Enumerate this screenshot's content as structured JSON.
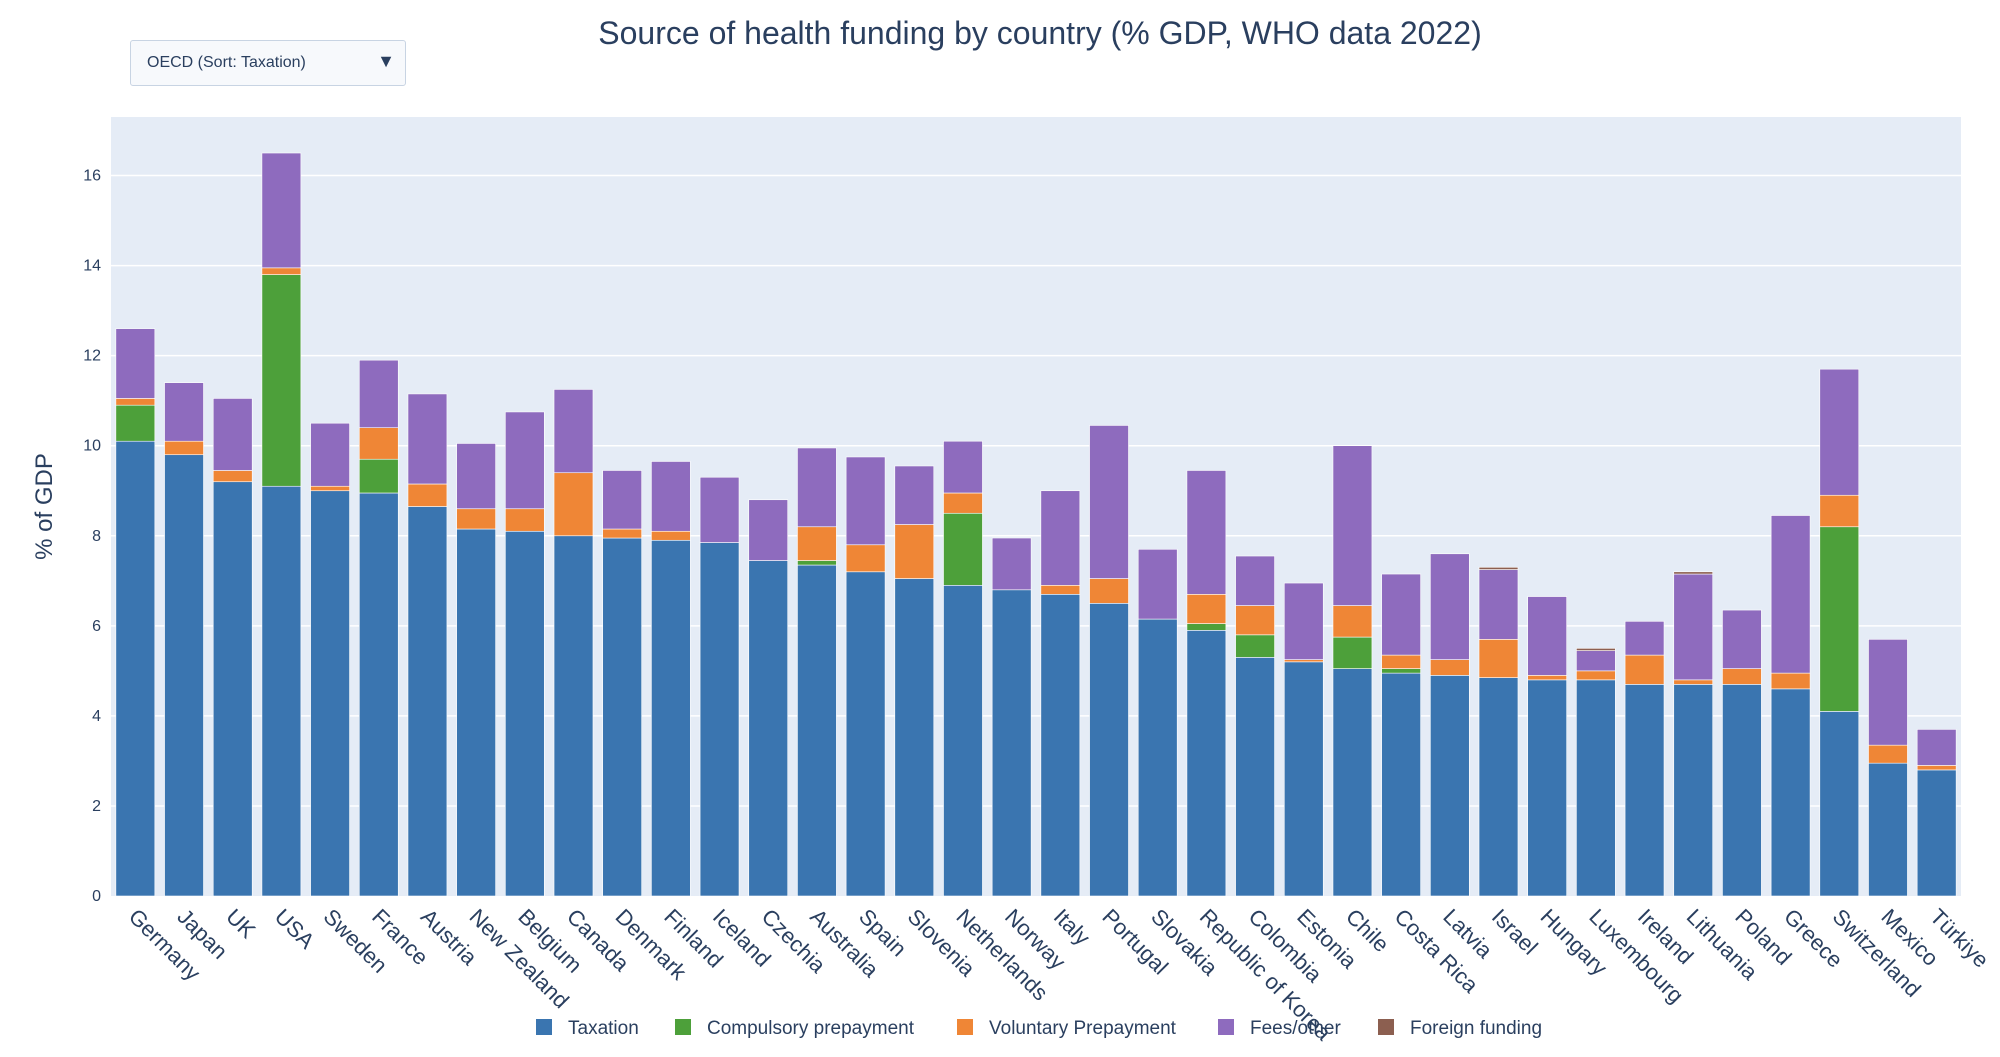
{
  "dropdown": {
    "selected": "OECD (Sort: Taxation)",
    "arrow_icon": "triangle-down-icon"
  },
  "chart_data": {
    "type": "bar",
    "barmode": "stack",
    "title": "Source of health funding by country (% GDP, WHO data 2022)",
    "xlabel": "",
    "ylabel": "% of GDP",
    "ylim": [
      0,
      17.3
    ],
    "yticks": [
      0,
      2,
      4,
      6,
      8,
      10,
      12,
      14,
      16
    ],
    "grid": true,
    "legend": "bottom",
    "background": "#e5ecf6",
    "categories": [
      "Germany",
      "Japan",
      "UK",
      "USA",
      "Sweden",
      "France",
      "Austria",
      "New Zealand",
      "Belgium",
      "Canada",
      "Denmark",
      "Finland",
      "Iceland",
      "Czechia",
      "Australia",
      "Spain",
      "Slovenia",
      "Netherlands",
      "Norway",
      "Italy",
      "Portugal",
      "Slovakia",
      "Republic of Korea",
      "Colombia",
      "Estonia",
      "Chile",
      "Costa Rica",
      "Latvia",
      "Israel",
      "Hungary",
      "Luxembourg",
      "Ireland",
      "Lithuania",
      "Poland",
      "Greece",
      "Switzerland",
      "Mexico",
      "Türkiye"
    ],
    "series": [
      {
        "name": "Taxation",
        "color": "#3a75b0",
        "values": [
          10.1,
          9.8,
          9.2,
          9.1,
          9.0,
          8.95,
          8.65,
          8.15,
          8.1,
          8.0,
          7.95,
          7.9,
          7.85,
          7.45,
          7.35,
          7.2,
          7.05,
          6.9,
          6.8,
          6.7,
          6.5,
          6.15,
          5.9,
          5.3,
          5.2,
          5.05,
          4.95,
          4.9,
          4.85,
          4.8,
          4.8,
          4.7,
          4.7,
          4.7,
          4.6,
          4.1,
          2.95,
          2.8
        ]
      },
      {
        "name": "Compulsory prepayment",
        "color": "#4da03a",
        "values": [
          0.8,
          0.0,
          0.0,
          4.7,
          0.0,
          0.75,
          0.0,
          0.0,
          0.0,
          0.0,
          0.0,
          0.0,
          0.0,
          0.0,
          0.1,
          0.0,
          0.0,
          1.6,
          0.0,
          0.0,
          0.0,
          0.0,
          0.15,
          0.5,
          0.0,
          0.7,
          0.1,
          0.0,
          0.0,
          0.0,
          0.0,
          0.0,
          0.0,
          0.0,
          0.0,
          4.1,
          0.0,
          0.0
        ]
      },
      {
        "name": "Voluntary Prepayment",
        "color": "#ef8636",
        "values": [
          0.15,
          0.3,
          0.25,
          0.15,
          0.1,
          0.7,
          0.5,
          0.45,
          0.5,
          1.4,
          0.2,
          0.2,
          0.0,
          0.0,
          0.75,
          0.6,
          1.2,
          0.45,
          0.0,
          0.2,
          0.55,
          0.0,
          0.65,
          0.65,
          0.05,
          0.7,
          0.3,
          0.35,
          0.85,
          0.1,
          0.2,
          0.65,
          0.1,
          0.35,
          0.35,
          0.7,
          0.4,
          0.1
        ]
      },
      {
        "name": "Fees/other",
        "color": "#8e6bbe",
        "values": [
          1.55,
          1.3,
          1.6,
          2.55,
          1.4,
          1.5,
          2.0,
          1.45,
          2.15,
          1.85,
          1.3,
          1.55,
          1.45,
          1.35,
          1.75,
          1.95,
          1.3,
          1.15,
          1.15,
          2.1,
          3.4,
          1.55,
          2.75,
          1.1,
          1.7,
          3.55,
          1.8,
          2.35,
          1.55,
          1.75,
          0.45,
          0.75,
          2.35,
          1.3,
          3.5,
          2.8,
          2.35,
          0.8
        ]
      },
      {
        "name": "Foreign funding",
        "color": "#8c5f50",
        "values": [
          0,
          0,
          0,
          0,
          0,
          0,
          0,
          0,
          0,
          0,
          0,
          0,
          0,
          0,
          0,
          0,
          0,
          0,
          0,
          0,
          0,
          0,
          0,
          0,
          0,
          0,
          0,
          0,
          0.05,
          0,
          0.05,
          0,
          0.05,
          0,
          0,
          0,
          0,
          0
        ]
      }
    ]
  }
}
